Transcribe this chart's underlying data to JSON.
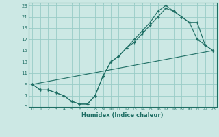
{
  "xlabel": "Humidex (Indice chaleur)",
  "bg_color": "#cce8e4",
  "grid_color": "#99ccc7",
  "line_color": "#1e6e64",
  "xlim": [
    -0.5,
    23.5
  ],
  "ylim": [
    5,
    23.5
  ],
  "xticks": [
    0,
    1,
    2,
    3,
    4,
    5,
    6,
    7,
    8,
    9,
    10,
    11,
    12,
    13,
    14,
    15,
    16,
    17,
    18,
    19,
    20,
    21,
    22,
    23
  ],
  "yticks": [
    5,
    7,
    9,
    11,
    13,
    15,
    17,
    19,
    21,
    23
  ],
  "line1_x": [
    0,
    1,
    2,
    3,
    4,
    5,
    6,
    7,
    8,
    9,
    10,
    11,
    12,
    13,
    14,
    15,
    16,
    17,
    18,
    19,
    20,
    21,
    22,
    23
  ],
  "line1_y": [
    9,
    8,
    8,
    7.5,
    7,
    6,
    5.5,
    5.5,
    7,
    10.5,
    13,
    14,
    15.5,
    16.5,
    18,
    19.5,
    21,
    22.5,
    22,
    21,
    20,
    20,
    16,
    15
  ],
  "line2_x": [
    0,
    1,
    2,
    3,
    4,
    5,
    6,
    7,
    8,
    9,
    10,
    11,
    12,
    13,
    14,
    15,
    16,
    17,
    18,
    19,
    20,
    21,
    22,
    23
  ],
  "line2_y": [
    9,
    8,
    8,
    7.5,
    7,
    6,
    5.5,
    5.5,
    7,
    10.5,
    13,
    14,
    15.5,
    17,
    18.5,
    20,
    22,
    23,
    22,
    21,
    20,
    17,
    16,
    15
  ],
  "line3_x": [
    0,
    23
  ],
  "line3_y": [
    9,
    15
  ]
}
